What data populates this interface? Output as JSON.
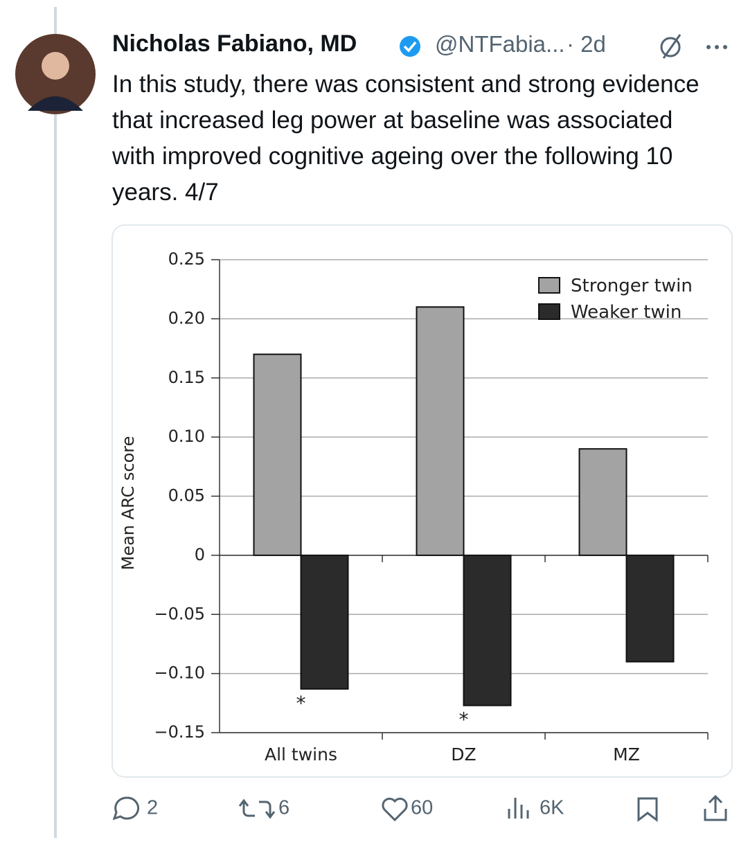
{
  "tweet": {
    "name": "Nicholas Fabiano, MD",
    "handle": "@NTFabia...",
    "time": "· 2d",
    "body": "In this study, there was consistent and strong evidence that increased leg power at baseline was associated with improved cognitive ageing over the following 10 years. 4/7",
    "stats": {
      "replies": "2",
      "reposts": "6",
      "likes": "60",
      "views": "6K"
    }
  },
  "chart_data": {
    "type": "bar",
    "y_label": "Mean ARC score",
    "categories": [
      "All twins",
      "DZ",
      "MZ"
    ],
    "series": [
      {
        "name": "Stronger twin",
        "color": "#a3a3a3",
        "values": [
          0.17,
          0.21,
          0.09
        ]
      },
      {
        "name": "Weaker twin",
        "color": "#2b2b2b",
        "values": [
          -0.113,
          -0.127,
          -0.09
        ]
      }
    ],
    "significance": [
      "*",
      "*",
      null
    ],
    "ylim": [
      -0.15,
      0.25
    ],
    "yticks": [
      {
        "value": -0.15,
        "label": "−0.15"
      },
      {
        "value": -0.1,
        "label": "−0.10"
      },
      {
        "value": -0.05,
        "label": "−0.05"
      },
      0,
      0.05,
      {
        "value": 0.1,
        "label": "0.10"
      },
      0.15,
      {
        "value": 0.2,
        "label": "0.20"
      },
      0.25
    ],
    "grid": true,
    "legend": "upper right"
  }
}
